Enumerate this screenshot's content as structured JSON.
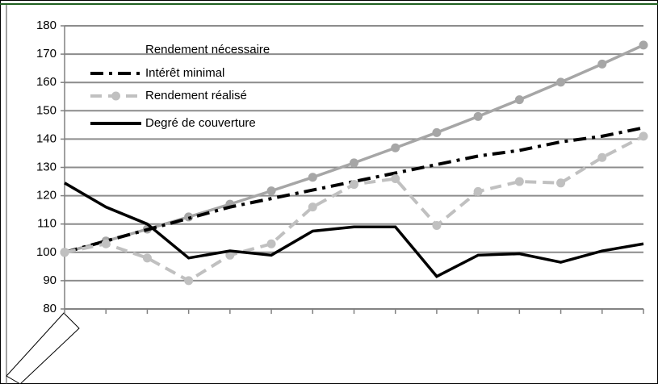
{
  "chart_data": {
    "type": "line",
    "categories": [
      null,
      null,
      null,
      null,
      null,
      null,
      null,
      null,
      null,
      null,
      null,
      null,
      null,
      null,
      null
    ],
    "series": [
      {
        "name": "Rendement nécessaire",
        "color": "#a6a6a6",
        "dash": "solid",
        "marker": true,
        "legend_sample": false,
        "values": [
          100,
          104,
          108.2,
          112.5,
          117,
          121.7,
          126.5,
          131.6,
          136.9,
          142.3,
          148,
          153.9,
          160.1,
          166.5,
          173.2
        ]
      },
      {
        "name": "Intérêt minimal",
        "color": "#000000",
        "dash": "dashdot",
        "marker": false,
        "legend_sample": true,
        "values": [
          100,
          104,
          108,
          112,
          116,
          119,
          122,
          125,
          128,
          131,
          134,
          136,
          139,
          141,
          144
        ]
      },
      {
        "name": "Rendement réalisé",
        "color": "#c0c0c0",
        "dash": "dashed",
        "marker": true,
        "legend_sample": true,
        "values": [
          100,
          103,
          98,
          90,
          99,
          103,
          116,
          124,
          126,
          109.5,
          121.5,
          125,
          124.5,
          133.5,
          141
        ]
      },
      {
        "name": "Degré de couverture",
        "color": "#000000",
        "dash": "solid",
        "marker": false,
        "legend_sample": true,
        "values": [
          124.5,
          116,
          110,
          98,
          100.5,
          99,
          107.5,
          109,
          109,
          91.5,
          99,
          99.5,
          96.5,
          100.5,
          103
        ]
      }
    ],
    "ylim": [
      80,
      180
    ],
    "yticks": [
      80,
      90,
      100,
      110,
      120,
      130,
      140,
      150,
      160,
      170,
      180
    ],
    "grid": true,
    "legend": "upper left"
  }
}
